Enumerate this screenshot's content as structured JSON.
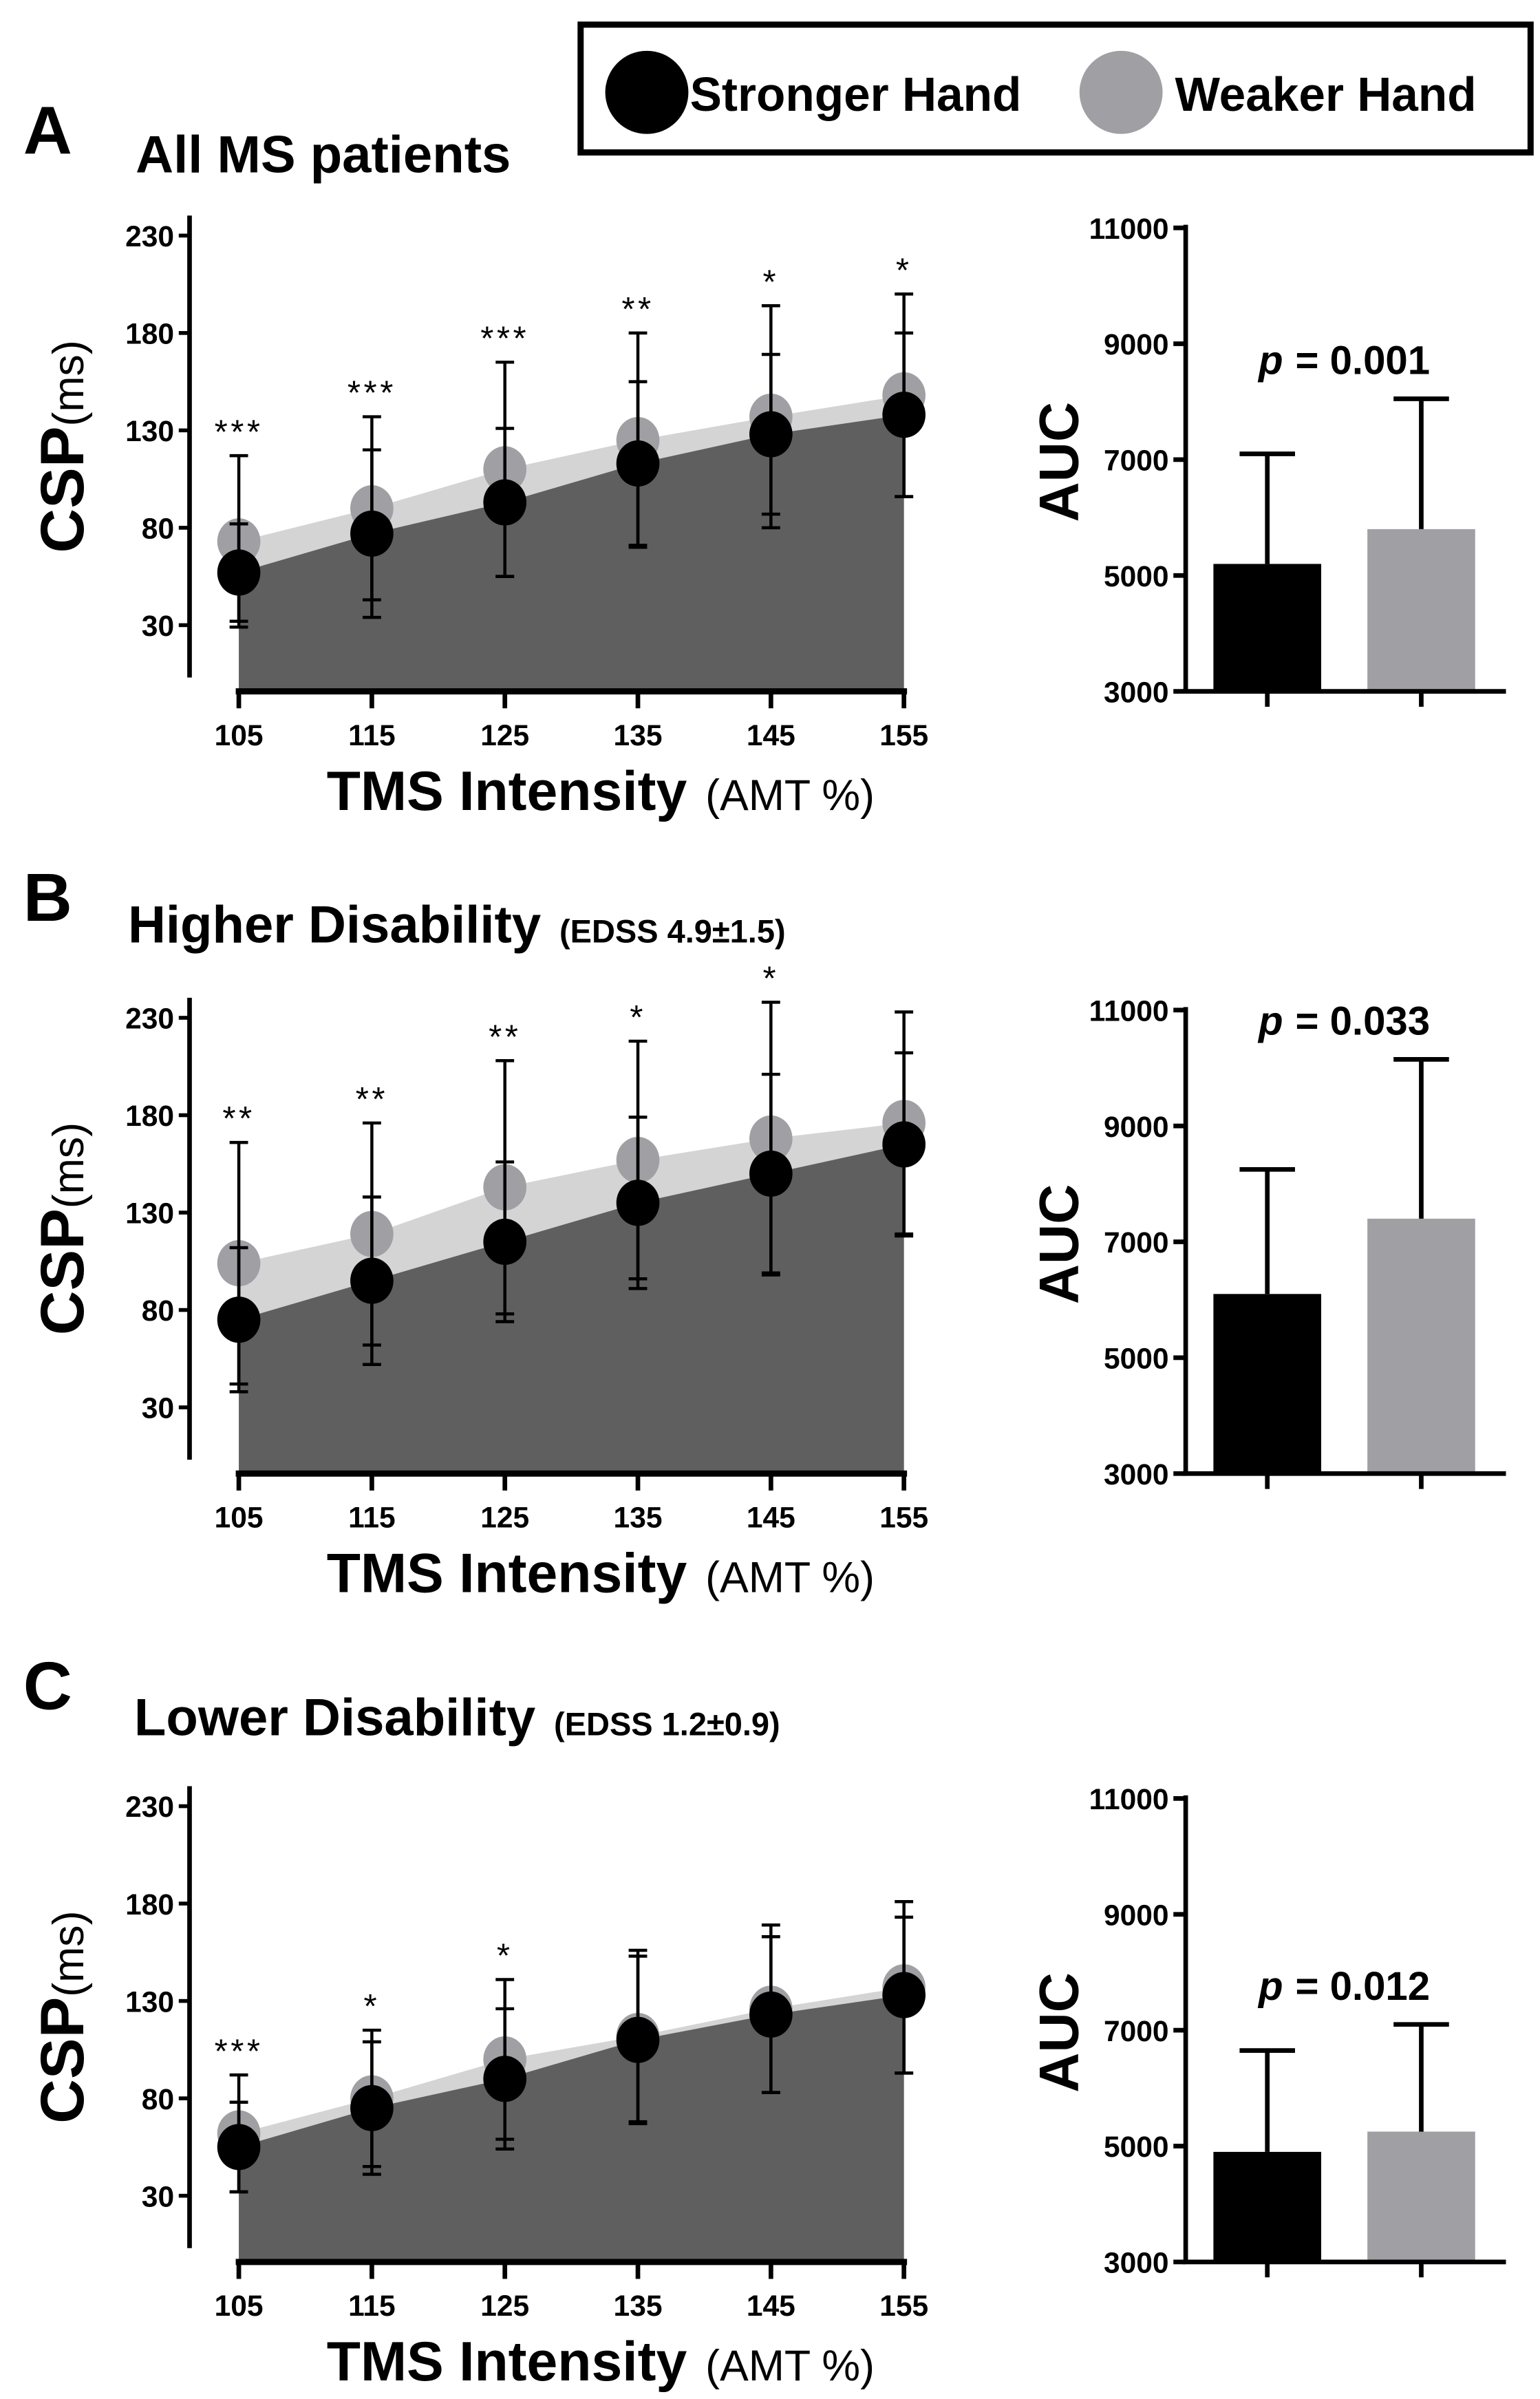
{
  "legend": {
    "items": [
      {
        "label": "Stronger Hand",
        "color": "#000000"
      },
      {
        "label": "Weaker Hand",
        "color": "#a0a0a4"
      }
    ]
  },
  "colors": {
    "stronger_area": "#5f5f5f",
    "weaker_area": "#d4d4d4",
    "stronger": "#000000",
    "weaker": "#a0a0a4"
  },
  "panels": [
    {
      "letter": "A",
      "title": "All MS patients",
      "subtitle": ""
    },
    {
      "letter": "B",
      "title": "Higher Disability",
      "subtitle": "(EDSS 4.9±1.5)"
    },
    {
      "letter": "C",
      "title": "Lower Disability",
      "subtitle": "(EDSS 1.2±0.9)"
    }
  ],
  "chart_data": [
    {
      "panel": "A",
      "type": "line",
      "x": [
        105,
        115,
        125,
        135,
        145,
        155
      ],
      "xlabel": "TMS Intensity",
      "xlabel_unit": "(AMT %)",
      "ylabel": "CSP",
      "ylabel_unit": "(ms)",
      "ylim": [
        0,
        240
      ],
      "yticks": [
        30,
        80,
        130,
        180,
        230
      ],
      "series": [
        {
          "name": "Stronger Hand",
          "values": [
            57,
            77,
            93,
            113,
            128,
            138
          ],
          "sd": [
            25,
            43,
            38,
            42,
            41,
            42
          ]
        },
        {
          "name": "Weaker Hand",
          "values": [
            73,
            90,
            110,
            125,
            137,
            148
          ],
          "sd": [
            44,
            47,
            55,
            55,
            57,
            52
          ]
        }
      ],
      "significance": [
        "***",
        "***",
        "***",
        "**",
        "*",
        "*"
      ]
    },
    {
      "panel": "A",
      "type": "bar",
      "categories": [
        "Stronger Hand",
        "Weaker Hand"
      ],
      "values": [
        5200,
        5800
      ],
      "sd": [
        1900,
        2250
      ],
      "ylabel": "AUC",
      "ylim": [
        3000,
        11000
      ],
      "yticks": [
        3000,
        5000,
        7000,
        9000,
        11000
      ],
      "p_label": "p",
      "p_value": "= 0.001"
    },
    {
      "panel": "B",
      "type": "line",
      "x": [
        105,
        115,
        125,
        135,
        145,
        155
      ],
      "xlabel": "TMS Intensity",
      "xlabel_unit": "(AMT %)",
      "ylabel": "CSP",
      "ylabel_unit": "(ms)",
      "ylim": [
        0,
        240
      ],
      "yticks": [
        30,
        80,
        130,
        180,
        230
      ],
      "series": [
        {
          "name": "Stronger Hand",
          "values": [
            75,
            95,
            115,
            135,
            150,
            165
          ],
          "sd": [
            37,
            43,
            41,
            44,
            51,
            47
          ]
        },
        {
          "name": "Weaker Hand",
          "values": [
            104,
            119,
            143,
            157,
            168,
            176
          ],
          "sd": [
            62,
            57,
            65,
            61,
            70,
            57
          ]
        }
      ],
      "significance": [
        "**",
        "**",
        "**",
        "*",
        "*",
        ""
      ]
    },
    {
      "panel": "B",
      "type": "bar",
      "categories": [
        "Stronger Hand",
        "Weaker Hand"
      ],
      "values": [
        6100,
        7400
      ],
      "sd": [
        2150,
        2750
      ],
      "ylabel": "AUC",
      "ylim": [
        3000,
        11000
      ],
      "yticks": [
        3000,
        5000,
        7000,
        9000,
        11000
      ],
      "p_label": "p",
      "p_value": "= 0.033"
    },
    {
      "panel": "C",
      "type": "line",
      "x": [
        105,
        115,
        125,
        135,
        145,
        155
      ],
      "xlabel": "TMS Intensity",
      "xlabel_unit": "(AMT %)",
      "ylabel": "CSP",
      "ylabel_unit": "(ms)",
      "ylim": [
        0,
        240
      ],
      "yticks": [
        30,
        80,
        130,
        180,
        230
      ],
      "series": [
        {
          "name": "Stronger Hand",
          "values": [
            55,
            75,
            90,
            110,
            123,
            133
          ],
          "sd": [
            23,
            34,
            36,
            43,
            40,
            40
          ]
        },
        {
          "name": "Weaker Hand",
          "values": [
            62,
            80,
            100,
            112,
            126,
            137
          ],
          "sd": [
            30,
            35,
            41,
            44,
            43,
            44
          ]
        }
      ],
      "significance": [
        "***",
        "*",
        "*",
        "",
        "",
        ""
      ]
    },
    {
      "panel": "C",
      "type": "bar",
      "categories": [
        "Stronger Hand",
        "Weaker Hand"
      ],
      "values": [
        4900,
        5250
      ],
      "sd": [
        1750,
        1850
      ],
      "ylabel": "AUC",
      "ylim": [
        3000,
        11000
      ],
      "yticks": [
        3000,
        5000,
        7000,
        9000,
        11000
      ],
      "p_label": "p",
      "p_value": "= 0.012"
    }
  ]
}
